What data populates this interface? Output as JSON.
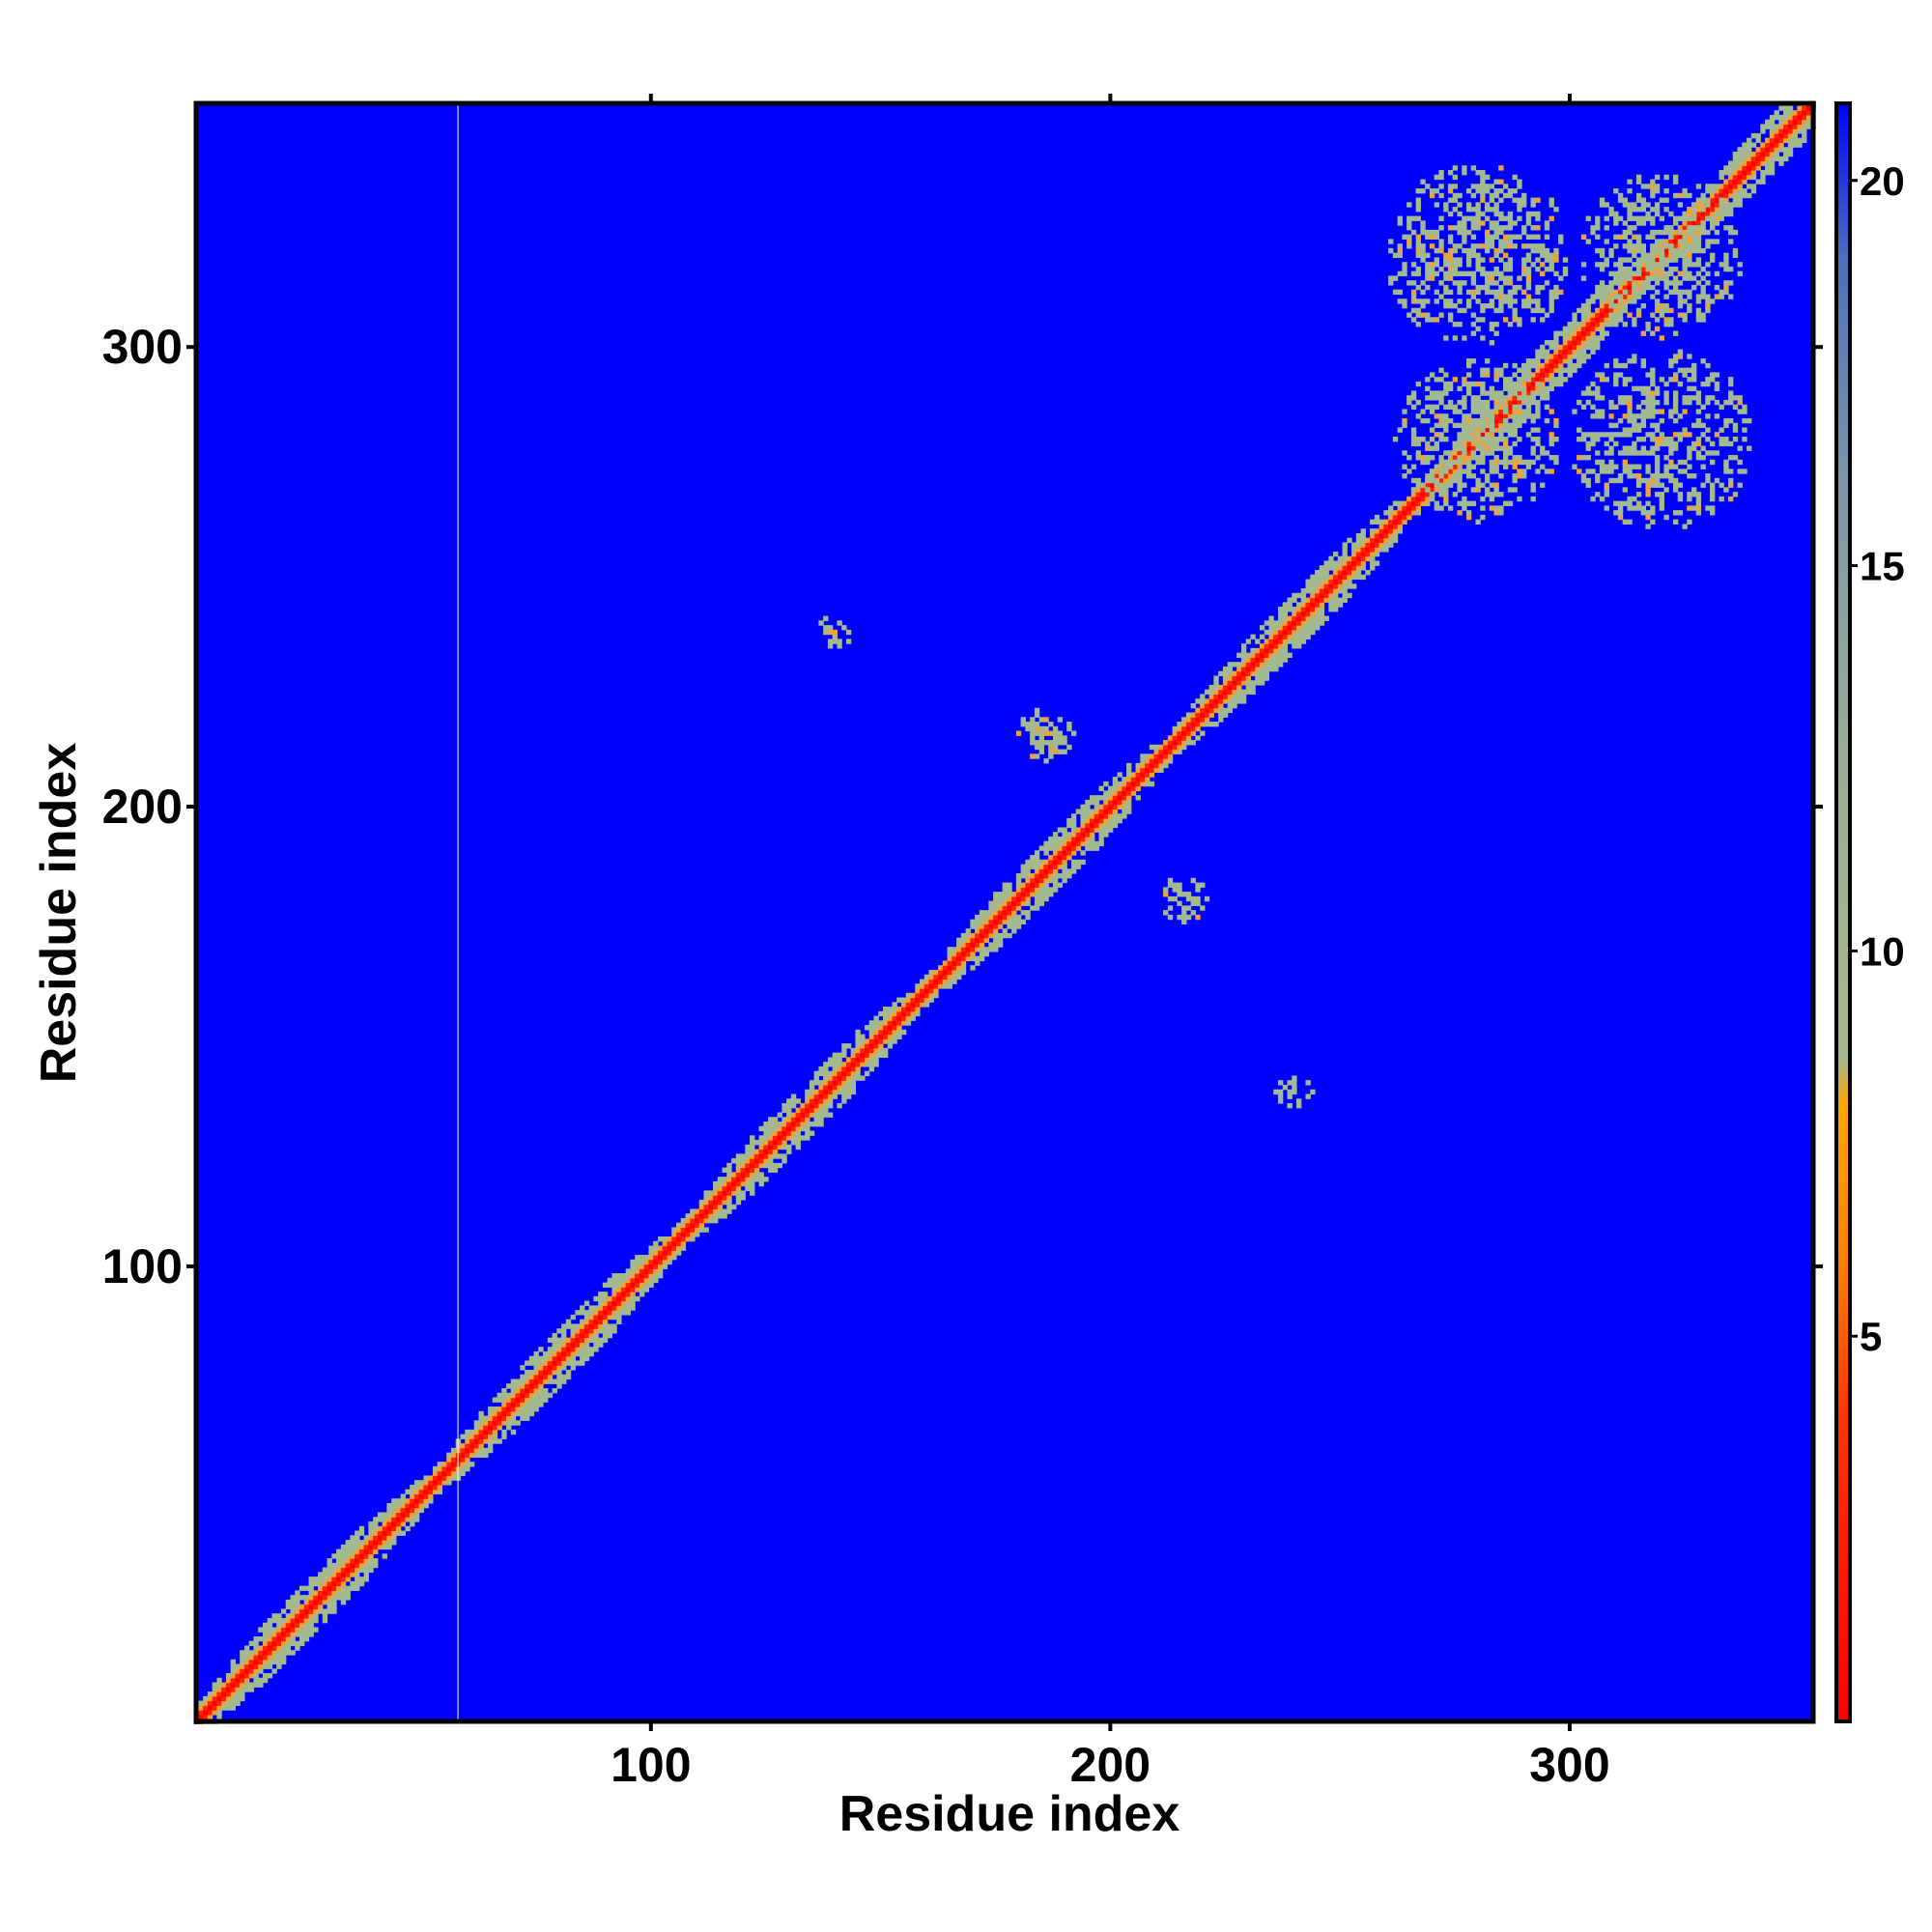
{
  "chart_data": {
    "type": "heatmap",
    "title": "",
    "xlabel": "Residue index",
    "ylabel": "Residue index",
    "xlim": [
      1,
      353
    ],
    "ylim": [
      1,
      353
    ],
    "x_ticks": [
      100,
      200,
      300
    ],
    "y_ticks": [
      100,
      200,
      300
    ],
    "colorbar": {
      "range": [
        0,
        21
      ],
      "ticks": [
        5,
        10,
        15,
        20
      ],
      "stops": [
        {
          "value": 0,
          "color": "#ff0000"
        },
        {
          "value": 4,
          "color": "#ff3300"
        },
        {
          "value": 6,
          "color": "#ff8000"
        },
        {
          "value": 8,
          "color": "#ffa500"
        },
        {
          "value": 8.6,
          "color": "#a8b88a"
        },
        {
          "value": 12,
          "color": "#9caf94"
        },
        {
          "value": 16,
          "color": "#7f97a8"
        },
        {
          "value": 19,
          "color": "#4c6fbd"
        },
        {
          "value": 21,
          "color": "#0000ff"
        }
      ]
    },
    "background_color": "#0000ff",
    "diagonal_color": "#ff0000",
    "near_diagonal_color": "#f0a23a",
    "contact_color": "#a3b98f",
    "contact_regions": [
      {
        "x_center": 140,
        "y_center": 238,
        "spread": 4
      },
      {
        "x_center": 186,
        "y_center": 216,
        "spread": 6
      },
      {
        "x_center": 216,
        "y_center": 180,
        "spread": 5
      },
      {
        "x_center": 240,
        "y_center": 138,
        "spread": 4
      },
      {
        "x_center": 280,
        "y_center": 320,
        "spread": 20
      },
      {
        "x_center": 320,
        "y_center": 320,
        "spread": 18
      },
      {
        "x_center": 320,
        "y_center": 280,
        "spread": 20
      },
      {
        "x_center": 280,
        "y_center": 280,
        "spread": 18
      }
    ],
    "grid": false,
    "legend": "colorbar-right"
  }
}
